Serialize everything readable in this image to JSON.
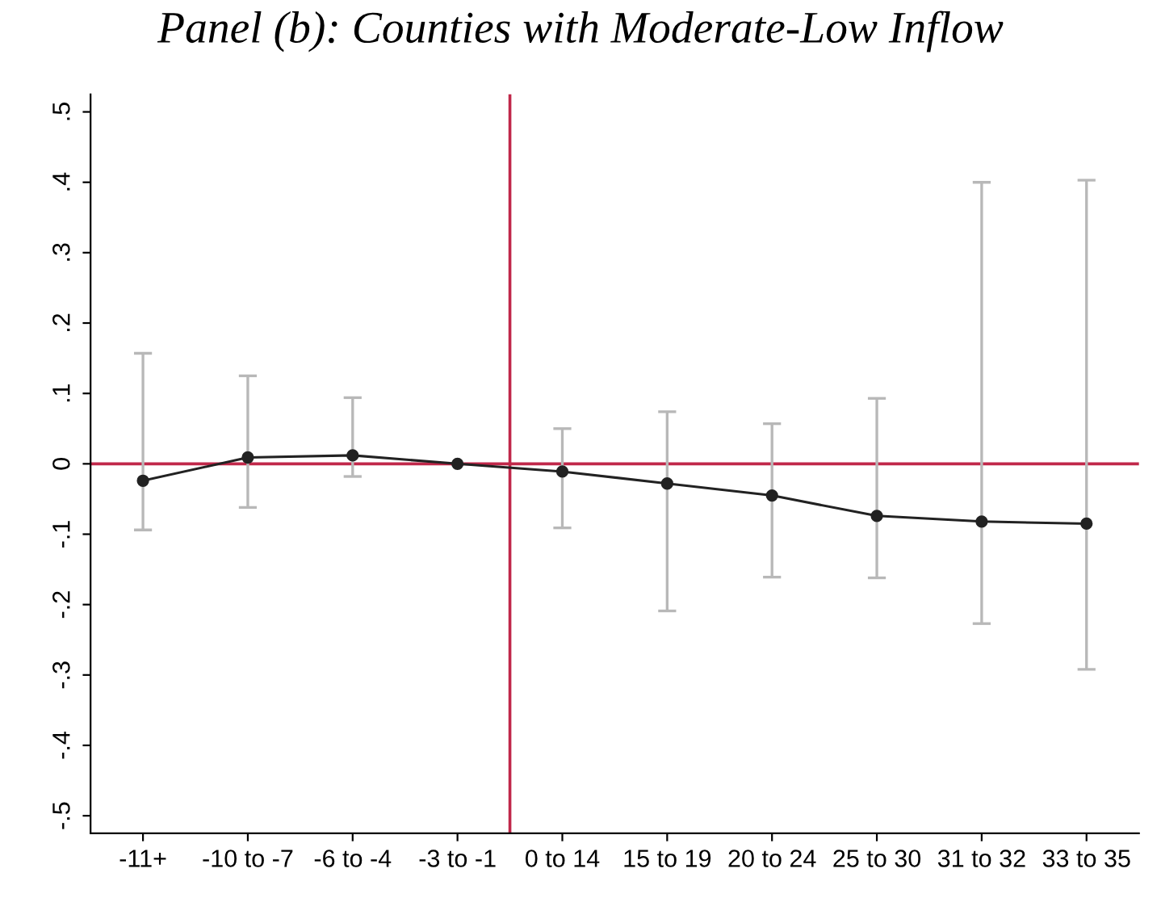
{
  "chart_data": {
    "type": "line",
    "title": "Panel (b): Counties with Moderate-Low Inflow",
    "categories": [
      "-11+",
      "-10 to -7",
      "-6 to -4",
      "-3 to -1",
      "0 to 14",
      "15 to 19",
      "20 to 24",
      "25 to 30",
      "31 to 32",
      "33 to 35"
    ],
    "ylim": [
      -0.525,
      0.525
    ],
    "yticks": [
      {
        "value": -0.5,
        "label": "-.5"
      },
      {
        "value": -0.4,
        "label": "-.4"
      },
      {
        "value": -0.3,
        "label": "-.3"
      },
      {
        "value": -0.2,
        "label": "-.2"
      },
      {
        "value": -0.1,
        "label": "-.1"
      },
      0,
      {
        "value": 0.1,
        "label": ".1"
      },
      {
        "value": 0.2,
        "label": ".2"
      },
      {
        "value": 0.3,
        "label": ".3"
      },
      {
        "value": 0.4,
        "label": ".4"
      },
      {
        "value": 0.5,
        "label": ".5"
      }
    ],
    "series": [
      {
        "color": "#222222",
        "values": [
          -0.024,
          0.009,
          0.012,
          0.0,
          -0.011,
          -0.028,
          -0.045,
          -0.074,
          -0.082,
          -0.085
        ],
        "errors": [
          [
            -0.094,
            0.157
          ],
          [
            -0.062,
            0.125
          ],
          [
            -0.018,
            0.094
          ],
          null,
          [
            -0.091,
            0.05
          ],
          [
            -0.209,
            0.074
          ],
          [
            -0.161,
            0.057
          ],
          [
            -0.162,
            0.093
          ],
          [
            -0.227,
            0.4
          ],
          [
            -0.292,
            0.403
          ]
        ]
      }
    ],
    "marker": "circle",
    "line_style": "solid",
    "grid": false,
    "legend": false,
    "ref_lines": [
      {
        "axis": "y",
        "value": 0,
        "color": "#c0284a"
      }
    ]
  }
}
